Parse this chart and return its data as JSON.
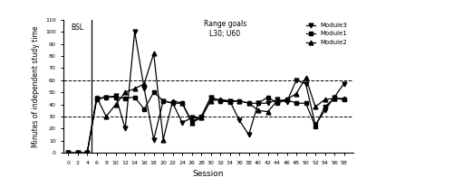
{
  "title_annotation": "Range goals\nL30; U60",
  "bsl_label": "BSL",
  "xlabel": "Session",
  "ylabel": "Minutes of independent study time",
  "ylim": [
    0,
    110
  ],
  "yticks": [
    0,
    10,
    20,
    30,
    40,
    50,
    60,
    70,
    80,
    90,
    100,
    110
  ],
  "lower_bound": 30,
  "upper_bound": 60,
  "phase_line_x": 5,
  "sessions_module3": [
    0,
    2,
    4,
    6,
    8,
    10,
    12,
    14,
    16,
    18,
    20,
    22,
    24,
    26,
    28,
    30,
    32,
    34,
    36,
    38,
    40,
    42,
    44,
    46,
    48,
    50,
    52,
    54,
    56,
    58
  ],
  "values_module3": [
    0,
    0,
    0,
    45,
    46,
    47,
    20,
    100,
    53,
    11,
    43,
    41,
    25,
    29,
    29,
    46,
    43,
    43,
    27,
    15,
    41,
    41,
    44,
    42,
    60,
    57,
    23,
    35,
    46,
    57
  ],
  "sessions_module1": [
    0,
    2,
    4,
    6,
    8,
    10,
    12,
    14,
    16,
    18,
    20,
    22,
    24,
    26,
    28,
    30,
    32,
    34,
    36,
    38,
    40,
    42,
    44,
    46,
    48,
    50,
    52,
    54,
    56,
    58
  ],
  "values_module1": [
    0,
    0,
    0,
    44,
    46,
    46,
    45,
    46,
    36,
    50,
    43,
    41,
    41,
    26,
    30,
    46,
    43,
    42,
    43,
    41,
    41,
    46,
    41,
    44,
    41,
    41,
    22,
    38,
    45,
    44
  ],
  "sessions_module2": [
    0,
    2,
    4,
    6,
    8,
    10,
    12,
    14,
    16,
    18,
    20,
    22,
    24,
    26,
    28,
    30,
    32,
    34,
    36,
    38,
    40,
    42,
    44,
    46,
    48,
    50,
    52,
    54,
    56,
    58
  ],
  "values_module2": [
    0,
    0,
    0,
    46,
    30,
    40,
    50,
    53,
    57,
    82,
    11,
    43,
    41,
    25,
    29,
    43,
    44,
    43,
    43,
    41,
    35,
    34,
    43,
    44,
    49,
    62,
    38,
    44,
    45,
    45
  ],
  "legend_labels": [
    "Module3",
    "Module1",
    "Module2"
  ],
  "line_color": "black",
  "marker_module3": "v",
  "marker_module1": "s",
  "marker_module2": "^",
  "markersize": 3.5,
  "linewidth": 0.9,
  "xtick_positions": [
    0,
    2,
    4,
    6,
    8,
    10,
    12,
    14,
    16,
    18,
    20,
    22,
    24,
    26,
    28,
    30,
    32,
    34,
    36,
    38,
    40,
    42,
    44,
    46,
    48,
    50,
    52,
    54,
    56,
    58
  ],
  "background_color": "white"
}
